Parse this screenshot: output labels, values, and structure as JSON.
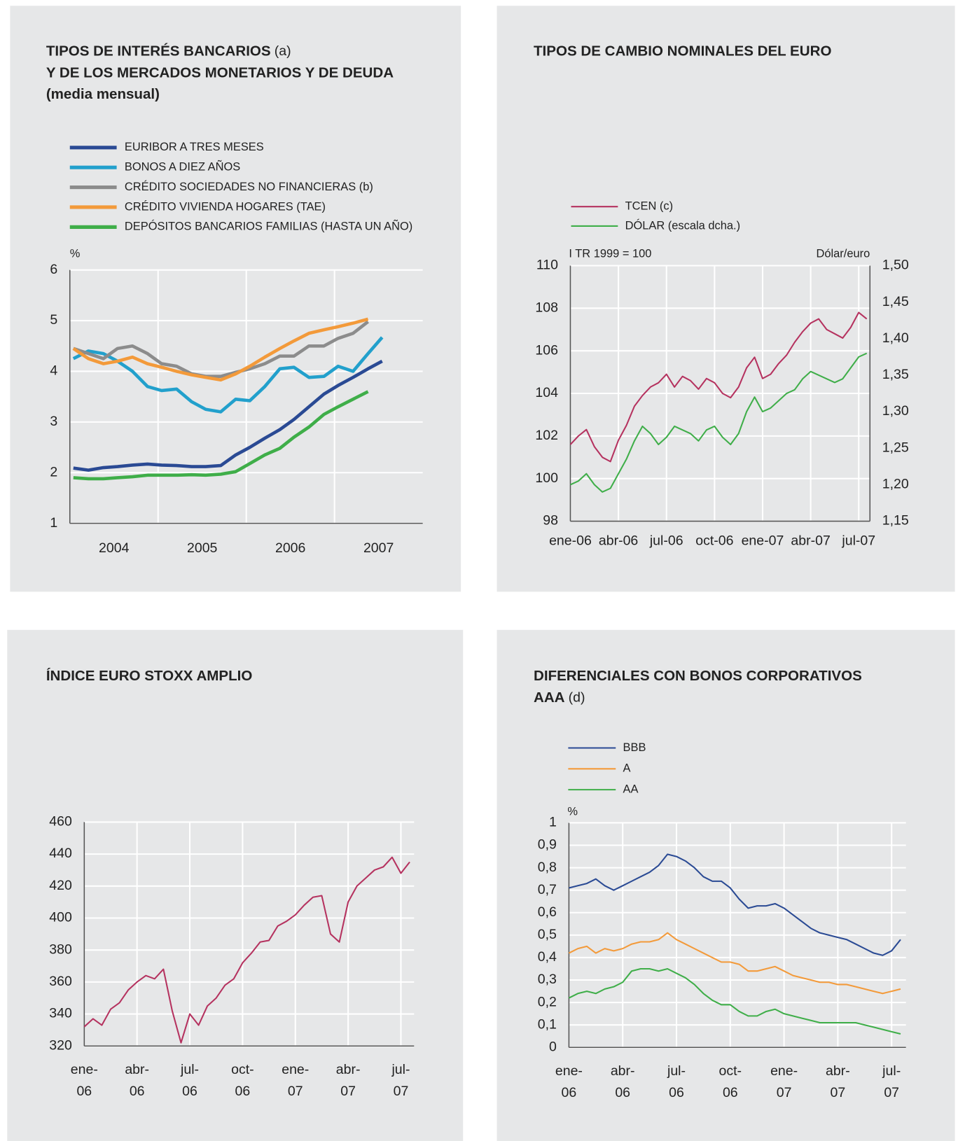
{
  "chart_data": [
    {
      "type": "line",
      "title": [
        "TIPOS DE INTERÉS BANCARIOS",
        "Y DE LOS MERCADOS MONETARIOS Y DE DEUDA",
        "(media mensual)"
      ],
      "title_note": "(a)",
      "ylabel": "%",
      "x": [
        2004.04,
        2004.21,
        2004.38,
        2004.54,
        2004.71,
        2004.88,
        2005.04,
        2005.21,
        2005.38,
        2005.54,
        2005.71,
        2005.88,
        2006.04,
        2006.21,
        2006.38,
        2006.54,
        2006.71,
        2006.88,
        2007.04,
        2007.21,
        2007.38,
        2007.54
      ],
      "xlim": [
        2004,
        2008
      ],
      "xticks": [
        {
          "value": 2004.5,
          "label": "2004"
        },
        {
          "value": 2005.5,
          "label": "2005"
        },
        {
          "value": 2006.5,
          "label": "2006"
        },
        {
          "value": 2007.5,
          "label": "2007"
        }
      ],
      "xgrid": [
        2005,
        2006,
        2007
      ],
      "ylim": [
        1,
        6
      ],
      "yticks": [
        1,
        2,
        3,
        4,
        5,
        6
      ],
      "grid": true,
      "series": [
        {
          "name": "EURIBOR A TRES MESES",
          "color": "#2a4a94",
          "values": [
            2.09,
            2.05,
            2.1,
            2.12,
            2.15,
            2.17,
            2.15,
            2.14,
            2.12,
            2.12,
            2.14,
            2.35,
            2.5,
            2.68,
            2.85,
            3.05,
            3.3,
            3.55,
            3.72,
            3.88,
            4.05,
            4.2
          ]
        },
        {
          "name": "BONOS A DIEZ AÑOS",
          "color": "#22a0cc",
          "values": [
            4.25,
            4.4,
            4.35,
            4.2,
            4.0,
            3.7,
            3.62,
            3.65,
            3.4,
            3.25,
            3.2,
            3.45,
            3.42,
            3.7,
            4.05,
            4.08,
            3.88,
            3.9,
            4.1,
            4.0,
            4.35,
            4.67
          ]
        },
        {
          "name": "CRÉDITO SOCIEDADES NO FINANCIERAS (b)",
          "color": "#8c8c8c",
          "values": [
            4.45,
            4.35,
            4.25,
            4.45,
            4.5,
            4.35,
            4.15,
            4.1,
            3.95,
            3.9,
            3.9,
            3.98,
            4.05,
            4.15,
            4.3,
            4.3,
            4.5,
            4.5,
            4.65,
            4.75,
            4.98,
            null
          ]
        },
        {
          "name": "CRÉDITO VIVIENDA HOGARES (TAE)",
          "color": "#f39a3a",
          "values": [
            4.45,
            4.25,
            4.15,
            4.2,
            4.28,
            4.15,
            4.08,
            4.0,
            3.93,
            3.88,
            3.83,
            3.95,
            4.1,
            4.28,
            4.45,
            4.6,
            4.75,
            4.82,
            4.88,
            4.95,
            5.03,
            null
          ]
        },
        {
          "name": "DEPÓSITOS BANCARIOS FAMILIAS (HASTA UN AÑO)",
          "color": "#3fae49",
          "values": [
            1.9,
            1.88,
            1.88,
            1.9,
            1.92,
            1.95,
            1.95,
            1.95,
            1.96,
            1.95,
            1.97,
            2.02,
            2.18,
            2.35,
            2.48,
            2.7,
            2.9,
            3.15,
            3.3,
            3.45,
            3.6,
            null
          ]
        }
      ]
    },
    {
      "type": "line",
      "title": [
        "TIPOS DE CAMBIO NOMINALES DEL EURO"
      ],
      "ylabel": "I TR 1999 = 100",
      "y2label": "Dólar/euro",
      "x": [
        0,
        0.5,
        1,
        1.5,
        2,
        2.5,
        3,
        3.5,
        4,
        4.5,
        5,
        5.5,
        6,
        6.5,
        7,
        7.5,
        8,
        8.5,
        9,
        9.5,
        10,
        10.5,
        11,
        11.5,
        12,
        12.5,
        13,
        13.5,
        14,
        14.5,
        15,
        15.5,
        16,
        16.5,
        17,
        17.5,
        18,
        18.5
      ],
      "xlim": [
        0,
        18.7
      ],
      "xticks": [
        {
          "value": 0,
          "label": "ene-06"
        },
        {
          "value": 3,
          "label": "abr-06"
        },
        {
          "value": 6,
          "label": "jul-06"
        },
        {
          "value": 9,
          "label": "oct-06"
        },
        {
          "value": 12,
          "label": "ene-07"
        },
        {
          "value": 15,
          "label": "abr-07"
        },
        {
          "value": 18,
          "label": "jul-07"
        }
      ],
      "ylim": [
        98,
        110
      ],
      "yticks": [
        98,
        100,
        102,
        104,
        106,
        108,
        110
      ],
      "y2lim": [
        1.15,
        1.5
      ],
      "y2ticks": [
        {
          "value": 1.15,
          "label": "1,15"
        },
        {
          "value": 1.2,
          "label": "1,20"
        },
        {
          "value": 1.25,
          "label": "1,25"
        },
        {
          "value": 1.3,
          "label": "1,30"
        },
        {
          "value": 1.35,
          "label": "1,35"
        },
        {
          "value": 1.4,
          "label": "1,40"
        },
        {
          "value": 1.45,
          "label": "1,45"
        },
        {
          "value": 1.5,
          "label": "1,50"
        }
      ],
      "grid": true,
      "series": [
        {
          "name": "TCEN (c)",
          "color": "#b5325f",
          "values": [
            101.6,
            102.0,
            102.3,
            101.5,
            101.0,
            100.8,
            101.8,
            102.5,
            103.4,
            103.9,
            104.3,
            104.5,
            104.9,
            104.3,
            104.8,
            104.6,
            104.2,
            104.7,
            104.5,
            104.0,
            103.8,
            104.3,
            105.2,
            105.7,
            104.7,
            104.9,
            105.4,
            105.8,
            106.4,
            106.9,
            107.3,
            107.5,
            107.0,
            106.8,
            106.6,
            107.1,
            107.8,
            107.5
          ]
        },
        {
          "name": "DÓLAR (escala dcha.)",
          "color": "#3fae49",
          "axis": "y2",
          "values": [
            1.2,
            1.205,
            1.215,
            1.2,
            1.19,
            1.195,
            1.215,
            1.235,
            1.26,
            1.28,
            1.27,
            1.255,
            1.265,
            1.28,
            1.275,
            1.27,
            1.26,
            1.275,
            1.28,
            1.265,
            1.255,
            1.27,
            1.3,
            1.32,
            1.3,
            1.305,
            1.315,
            1.325,
            1.33,
            1.345,
            1.355,
            1.35,
            1.345,
            1.34,
            1.345,
            1.36,
            1.375,
            1.38
          ]
        }
      ]
    },
    {
      "type": "line",
      "title": [
        "ÍNDICE EURO STOXX AMPLIO"
      ],
      "x": [
        0,
        0.5,
        1,
        1.5,
        2,
        2.5,
        3,
        3.5,
        4,
        4.5,
        5,
        5.5,
        6,
        6.5,
        7,
        7.5,
        8,
        8.5,
        9,
        9.5,
        10,
        10.5,
        11,
        11.5,
        12,
        12.5,
        13,
        13.5,
        14,
        14.5,
        15,
        15.5,
        16,
        16.5,
        17,
        17.5,
        18,
        18.5
      ],
      "xlim": [
        0,
        18.75
      ],
      "xticks": [
        {
          "value": 0,
          "label": "ene-06"
        },
        {
          "value": 3,
          "label": "abr-06"
        },
        {
          "value": 6,
          "label": "jul-06"
        },
        {
          "value": 9,
          "label": "oct-06"
        },
        {
          "value": 12,
          "label": "ene-07"
        },
        {
          "value": 15,
          "label": "abr-07"
        },
        {
          "value": 18,
          "label": "jul-07"
        }
      ],
      "ylim": [
        320,
        460
      ],
      "yticks": [
        320,
        340,
        360,
        380,
        400,
        420,
        440,
        460
      ],
      "grid": true,
      "series": [
        {
          "color": "#b5325f",
          "values": [
            332,
            337,
            333,
            343,
            347,
            355,
            360,
            364,
            362,
            368,
            342,
            322,
            340,
            333,
            345,
            350,
            358,
            362,
            372,
            378,
            385,
            386,
            395,
            398,
            402,
            408,
            413,
            414,
            390,
            385,
            410,
            420,
            425,
            430,
            432,
            438,
            428,
            435
          ]
        }
      ]
    },
    {
      "type": "line",
      "title": [
        "DIFERENCIALES CON BONOS CORPORATIVOS",
        "AAA"
      ],
      "title_note": "(d)",
      "ylabel": "%",
      "x": [
        0,
        0.5,
        1,
        1.5,
        2,
        2.5,
        3,
        3.5,
        4,
        4.5,
        5,
        5.5,
        6,
        6.5,
        7,
        7.5,
        8,
        8.5,
        9,
        9.5,
        10,
        10.5,
        11,
        11.5,
        12,
        12.5,
        13,
        13.5,
        14,
        14.5,
        15,
        15.5,
        16,
        16.5,
        17,
        17.5,
        18,
        18.5
      ],
      "xlim": [
        0,
        18.8
      ],
      "xticks": [
        {
          "value": 0,
          "label": "ene-06"
        },
        {
          "value": 3,
          "label": "abr-06"
        },
        {
          "value": 6,
          "label": "jul-06"
        },
        {
          "value": 9,
          "label": "oct-06"
        },
        {
          "value": 12,
          "label": "ene-07"
        },
        {
          "value": 15,
          "label": "abr-07"
        },
        {
          "value": 18,
          "label": "jul-07"
        }
      ],
      "ylim": [
        0,
        1
      ],
      "yticks": [
        0,
        {
          "value": 0.1,
          "label": "0,1"
        },
        {
          "value": 0.2,
          "label": "0,2"
        },
        {
          "value": 0.3,
          "label": "0,3"
        },
        {
          "value": 0.4,
          "label": "0,4"
        },
        {
          "value": 0.5,
          "label": "0,5"
        },
        {
          "value": 0.6,
          "label": "0,6"
        },
        {
          "value": 0.7,
          "label": "0,7"
        },
        {
          "value": 0.8,
          "label": "0,8"
        },
        {
          "value": 0.9,
          "label": "0,9"
        },
        1
      ],
      "grid": true,
      "series": [
        {
          "name": "BBB",
          "color": "#2a4a94",
          "values": [
            0.71,
            0.72,
            0.73,
            0.75,
            0.72,
            0.7,
            0.72,
            0.74,
            0.76,
            0.78,
            0.81,
            0.86,
            0.85,
            0.83,
            0.8,
            0.76,
            0.74,
            0.74,
            0.71,
            0.66,
            0.62,
            0.63,
            0.63,
            0.64,
            0.62,
            0.59,
            0.56,
            0.53,
            0.51,
            0.5,
            0.49,
            0.48,
            0.46,
            0.44,
            0.42,
            0.41,
            0.43,
            0.48
          ]
        },
        {
          "name": "A",
          "color": "#f39a3a",
          "values": [
            0.42,
            0.44,
            0.45,
            0.42,
            0.44,
            0.43,
            0.44,
            0.46,
            0.47,
            0.47,
            0.48,
            0.51,
            0.48,
            0.46,
            0.44,
            0.42,
            0.4,
            0.38,
            0.38,
            0.37,
            0.34,
            0.34,
            0.35,
            0.36,
            0.34,
            0.32,
            0.31,
            0.3,
            0.29,
            0.29,
            0.28,
            0.28,
            0.27,
            0.26,
            0.25,
            0.24,
            0.25,
            0.26
          ]
        },
        {
          "name": "AA",
          "color": "#3fae49",
          "values": [
            0.22,
            0.24,
            0.25,
            0.24,
            0.26,
            0.27,
            0.29,
            0.34,
            0.35,
            0.35,
            0.34,
            0.35,
            0.33,
            0.31,
            0.28,
            0.24,
            0.21,
            0.19,
            0.19,
            0.16,
            0.14,
            0.14,
            0.16,
            0.17,
            0.15,
            0.14,
            0.13,
            0.12,
            0.11,
            0.11,
            0.11,
            0.11,
            0.11,
            0.1,
            0.09,
            0.08,
            0.07,
            0.06
          ]
        }
      ]
    }
  ]
}
